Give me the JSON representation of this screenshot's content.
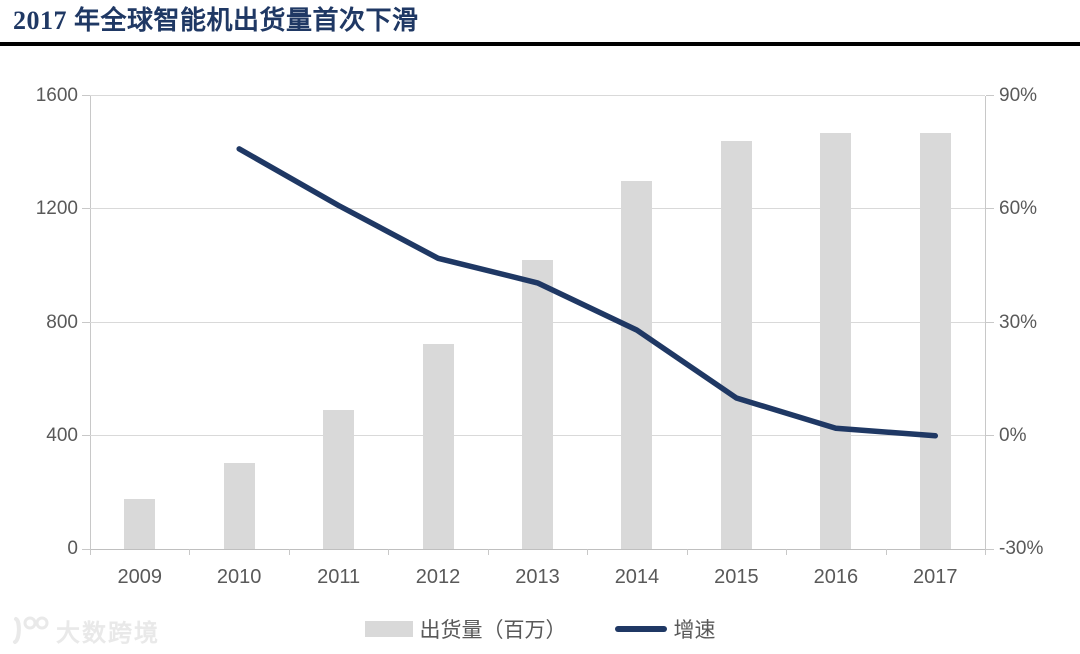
{
  "title": "2017 年全球智能机出货量首次下滑",
  "watermark": {
    "logo": "100-logo-icon",
    "text": "大数跨境"
  },
  "chart_data": {
    "type": "bar",
    "subtype": "bar+line combo, dual axis",
    "categories": [
      "2009",
      "2010",
      "2011",
      "2012",
      "2013",
      "2014",
      "2015",
      "2016",
      "2017"
    ],
    "series": [
      {
        "name": "出货量（百万）",
        "type": "bar",
        "axis": "left",
        "color": "#d9d9d9",
        "values": [
          175,
          305,
          490,
          725,
          1020,
          1300,
          1440,
          1470,
          1470
        ]
      },
      {
        "name": "增速",
        "type": "line",
        "axis": "right",
        "color": "#1f3864",
        "values": [
          null,
          76,
          61,
          47,
          40.5,
          28,
          10,
          2,
          0
        ]
      }
    ],
    "left_axis": {
      "min": 0,
      "max": 1600,
      "ticks": [
        "0",
        "400",
        "800",
        "1200",
        "1600"
      ]
    },
    "right_axis": {
      "min": -30,
      "max": 90,
      "ticks": [
        "-30%",
        "0%",
        "30%",
        "60%",
        "90%"
      ]
    },
    "legend": [
      {
        "label": "出货量（百万）",
        "swatch": "bar"
      },
      {
        "label": "增速",
        "swatch": "line"
      }
    ],
    "grid": true,
    "legend_position": "bottom-center"
  },
  "colors": {
    "bar": "#d9d9d9",
    "line": "#1f3864",
    "axis_text": "#595959",
    "grid": "#d9d9d9",
    "axis_line": "#c8c8c8",
    "title": "#1f3864",
    "title_rule": "#000000",
    "watermark": "#e9e9e9"
  }
}
